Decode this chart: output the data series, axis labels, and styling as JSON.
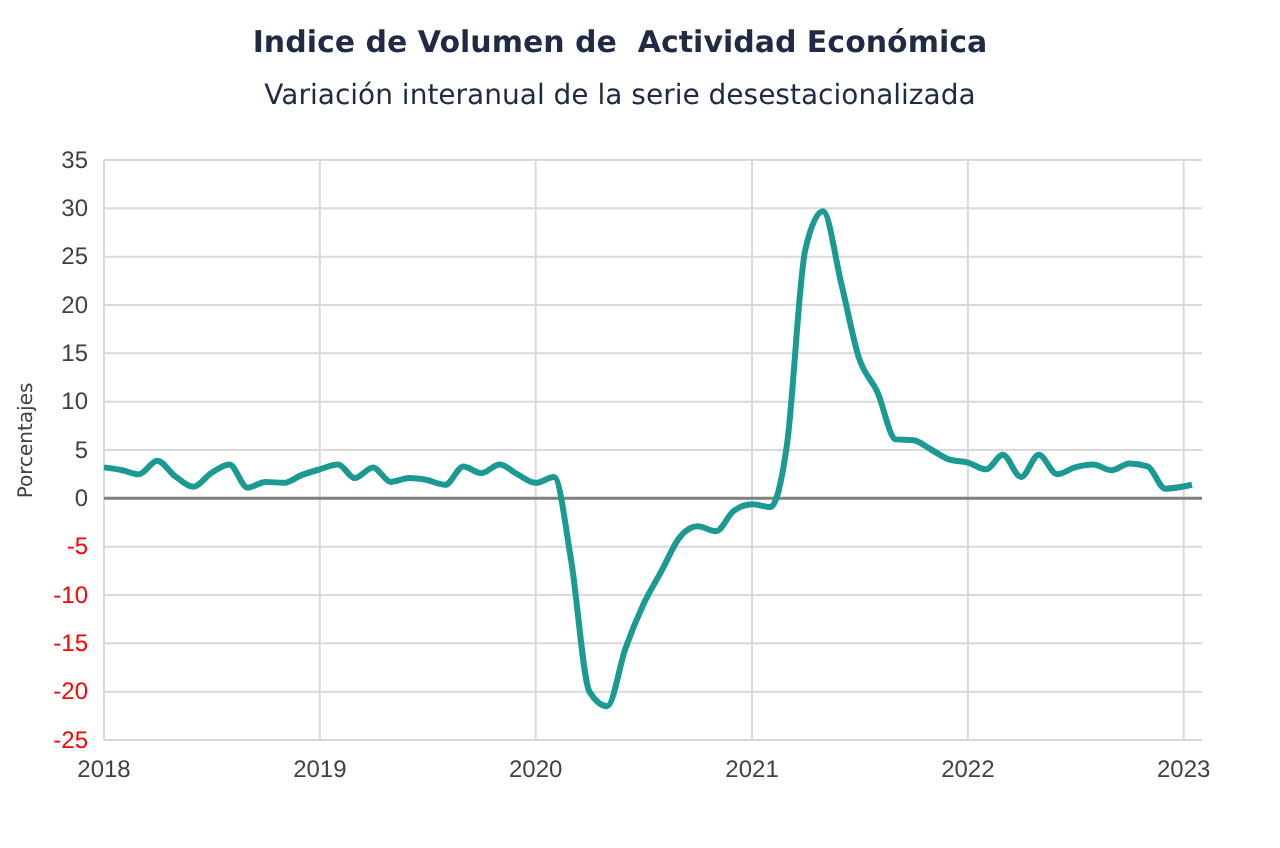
{
  "chart_data": {
    "type": "line",
    "title": "Indice de Volumen de  Actividad Económica",
    "subtitle": "Variación interanual de la serie desestacionalizada",
    "ylabel": "Porcentajes",
    "x": [
      "2018-01",
      "2018-02",
      "2018-03",
      "2018-04",
      "2018-05",
      "2018-06",
      "2018-07",
      "2018-08",
      "2018-09",
      "2018-10",
      "2018-11",
      "2018-12",
      "2019-01",
      "2019-02",
      "2019-03",
      "2019-04",
      "2019-05",
      "2019-06",
      "2019-07",
      "2019-08",
      "2019-09",
      "2019-10",
      "2019-11",
      "2019-12",
      "2020-01",
      "2020-02",
      "2020-03",
      "2020-04",
      "2020-05",
      "2020-06",
      "2020-07",
      "2020-08",
      "2020-09",
      "2020-10",
      "2020-11",
      "2020-12",
      "2021-01",
      "2021-02",
      "2021-03",
      "2021-04",
      "2021-05",
      "2021-06",
      "2021-07",
      "2021-08",
      "2021-09",
      "2021-10",
      "2021-11",
      "2021-12",
      "2022-01",
      "2022-02",
      "2022-03",
      "2022-04",
      "2022-05",
      "2022-06",
      "2022-07",
      "2022-08",
      "2022-09",
      "2022-10",
      "2022-11",
      "2022-12",
      "2023-01-15"
    ],
    "series": [
      {
        "color": "#1a9a92",
        "values": [
          3.2,
          2.9,
          2.5,
          3.9,
          2.3,
          1.2,
          2.6,
          3.5,
          1.1,
          1.7,
          1.6,
          2.4,
          3.0,
          3.5,
          2.1,
          3.2,
          1.7,
          2.1,
          1.9,
          1.4,
          3.3,
          2.6,
          3.5,
          2.5,
          1.6,
          2.2,
          -6.4,
          -20,
          -21.5,
          -15.5,
          -11,
          -7.5,
          -4,
          -2.9,
          -3.4,
          -1.3,
          -0.6,
          -0.9,
          5.5,
          25.7,
          29.7,
          22.2,
          14.5,
          11,
          6.1,
          6,
          5,
          4,
          3.7,
          3,
          4.5,
          2.2,
          4.5,
          2.5,
          3.2,
          3.5,
          2.9,
          3.6,
          3.3,
          1,
          1.4
        ]
      }
    ],
    "xlim": [
      "2018-01",
      "2023-02"
    ],
    "xticks": [
      {
        "value": "2018",
        "label": "2018"
      },
      {
        "value": "2019",
        "label": "2019"
      },
      {
        "value": "2020",
        "label": "2020"
      },
      {
        "value": "2021",
        "label": "2021"
      },
      {
        "value": "2022",
        "label": "2022"
      },
      {
        "value": "2023",
        "label": "2023"
      }
    ],
    "ylim": [
      -25,
      35
    ],
    "yticks": [
      -25,
      -20,
      -15,
      -10,
      -5,
      0,
      5,
      10,
      15,
      20,
      25,
      30,
      35
    ],
    "grid": true,
    "marker": "none",
    "line_style": "solid",
    "ref_lines": [
      {
        "axis": "y",
        "value": 0,
        "color": "#7f7f7f"
      }
    ]
  }
}
